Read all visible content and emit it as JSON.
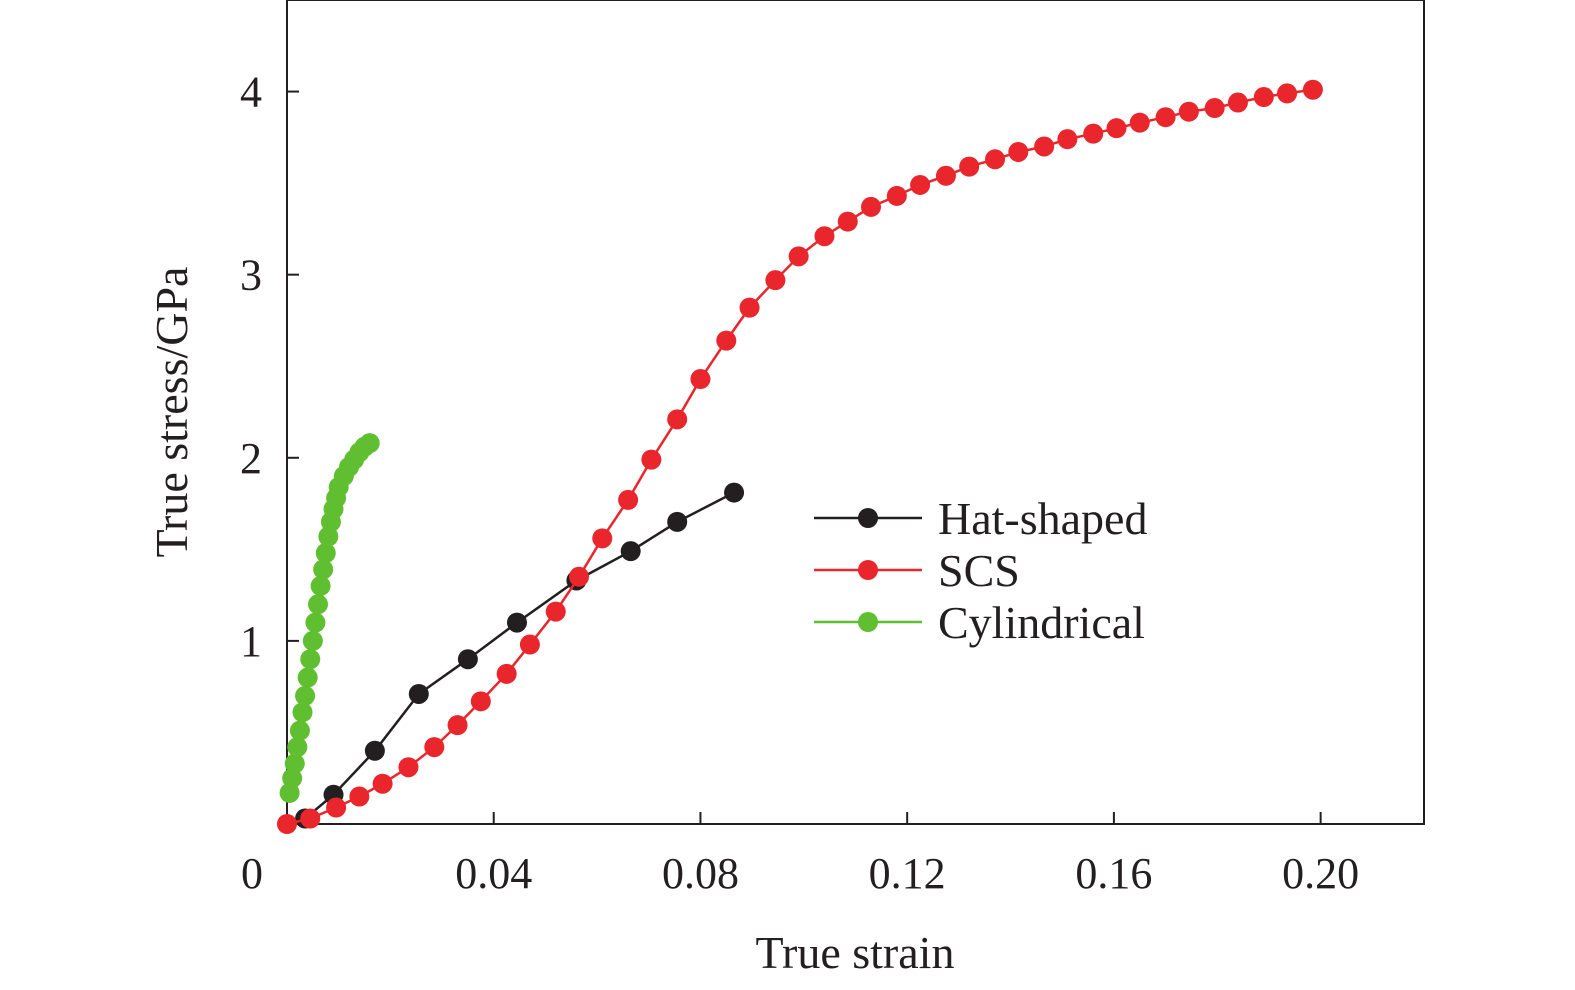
{
  "chart_data": {
    "type": "line",
    "title": "",
    "xlabel": "True strain",
    "ylabel": "True stress/GPa",
    "xlim": [
      0,
      0.22
    ],
    "ylim": [
      0,
      4.5
    ],
    "x_ticks": [
      0,
      0.04,
      0.08,
      0.12,
      0.16,
      0.2
    ],
    "x_tick_labels": [
      "0",
      "0.04",
      "0.08",
      "0.12",
      "0.16",
      "0.20"
    ],
    "y_ticks": [
      1,
      2,
      3,
      4
    ],
    "y_tick_labels": [
      "1",
      "2",
      "3",
      "4"
    ],
    "grid": false,
    "legend_position": "center-right",
    "series": [
      {
        "name": "Hat-shaped",
        "color": "#231f20",
        "x": [
          0.0035,
          0.009,
          0.017,
          0.0255,
          0.035,
          0.0445,
          0.056,
          0.0665,
          0.0755,
          0.0865
        ],
        "y": [
          0.03,
          0.16,
          0.4,
          0.71,
          0.9,
          1.1,
          1.33,
          1.49,
          1.65,
          1.81
        ]
      },
      {
        "name": "SCS",
        "color": "#e8262c",
        "x": [
          0.0,
          0.0045,
          0.0095,
          0.014,
          0.0185,
          0.0235,
          0.0285,
          0.033,
          0.0375,
          0.0425,
          0.047,
          0.052,
          0.0565,
          0.061,
          0.066,
          0.0705,
          0.0755,
          0.08,
          0.085,
          0.0895,
          0.0945,
          0.099,
          0.104,
          0.1085,
          0.113,
          0.118,
          0.1225,
          0.1275,
          0.132,
          0.137,
          0.1415,
          0.1465,
          0.151,
          0.156,
          0.1605,
          0.165,
          0.17,
          0.1745,
          0.1795,
          0.184,
          0.189,
          0.1935,
          0.1985
        ],
        "y": [
          0.0,
          0.03,
          0.09,
          0.15,
          0.22,
          0.31,
          0.42,
          0.54,
          0.67,
          0.82,
          0.98,
          1.16,
          1.35,
          1.56,
          1.77,
          1.99,
          2.21,
          2.43,
          2.64,
          2.82,
          2.97,
          3.1,
          3.21,
          3.29,
          3.37,
          3.43,
          3.49,
          3.54,
          3.59,
          3.63,
          3.67,
          3.7,
          3.74,
          3.77,
          3.8,
          3.83,
          3.86,
          3.89,
          3.91,
          3.94,
          3.97,
          3.99,
          4.01
        ]
      },
      {
        "name": "Cylindrical",
        "color": "#5fbf31",
        "x": [
          0.0005,
          0.001,
          0.0015,
          0.002,
          0.0025,
          0.003,
          0.0035,
          0.004,
          0.0045,
          0.005,
          0.0055,
          0.006,
          0.0065,
          0.007,
          0.0075,
          0.008,
          0.0085,
          0.009,
          0.0095,
          0.01,
          0.011,
          0.012,
          0.013,
          0.014,
          0.015,
          0.016
        ],
        "y": [
          0.17,
          0.25,
          0.33,
          0.42,
          0.51,
          0.61,
          0.7,
          0.8,
          0.9,
          1.0,
          1.1,
          1.2,
          1.3,
          1.39,
          1.48,
          1.57,
          1.65,
          1.72,
          1.78,
          1.84,
          1.9,
          1.95,
          1.99,
          2.03,
          2.06,
          2.08
        ]
      }
    ]
  }
}
